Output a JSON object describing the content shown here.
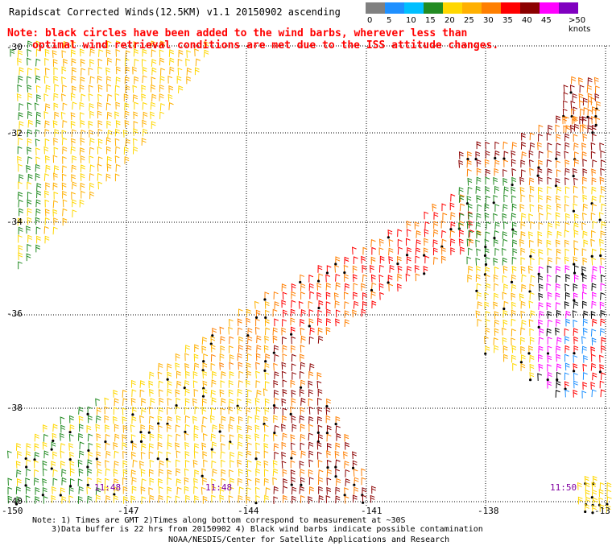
{
  "header": {
    "title": "Rapidscat Corrected Winds(12.5KM) v1.1 20150902 ascending",
    "note_line1": "Note: black circles have been added to the wind barbs, wherever less than",
    "note_line2": "optimal wind retrieval conditions are met due to the ISS attitude changes."
  },
  "legend": {
    "unit_label": ">50 knots",
    "ticks": [
      "0",
      "5",
      "10",
      "15",
      "20",
      "25",
      "30",
      "35",
      "40",
      "45"
    ],
    "colors": [
      "#808080",
      "#1e90ff",
      "#00bfff",
      "#228b22",
      "#ffd700",
      "#ffb000",
      "#ff7f00",
      "#ff0000",
      "#8b0000",
      "#ff00ff",
      "#8000c0"
    ]
  },
  "map": {
    "lat_labels": [
      "-30",
      "-32",
      "-34",
      "-36",
      "-38",
      "-40"
    ],
    "lon_labels": [
      "-150",
      "-147",
      "-144",
      "-141",
      "-138",
      "-13"
    ],
    "time_labels": [
      "11:48",
      "11:48",
      "11:50"
    ]
  },
  "footer": {
    "line1": "Note: 1) Times are GMT 2)Times along bottom correspond to measurement at ~30S",
    "line2": "3)Data buffer is 22 hrs from 20150902 4) Black wind barbs indicate possible contamination",
    "line3": "NOAA/NESDIS/Center for Satellite Applications and Research"
  }
}
